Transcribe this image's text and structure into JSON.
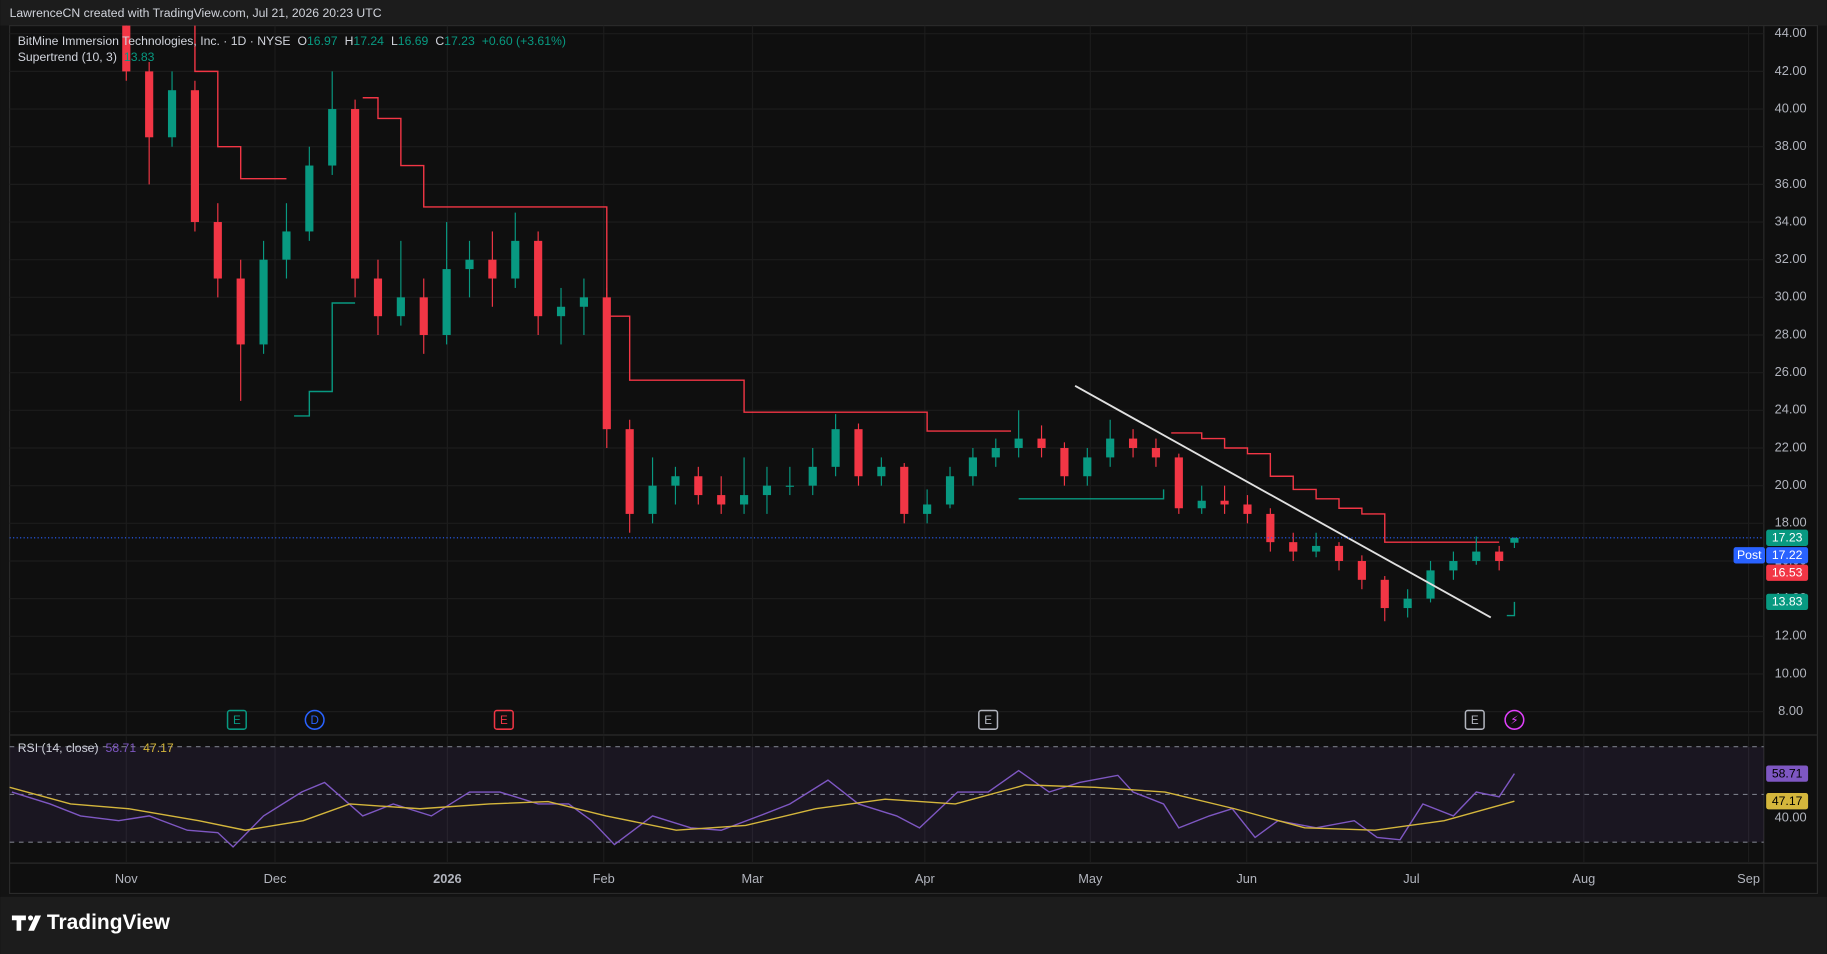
{
  "header": {
    "credit": "LawrenceCN created with TradingView.com, Jul 21, 2026 20:23 UTC"
  },
  "chart_data": [
    {
      "type": "candlestick",
      "title": "BitMine Immersion Technologies, Inc. · 1D · NYSE",
      "ohlc_letters": [
        "O",
        "H",
        "L",
        "C"
      ],
      "change": "+0.60 (+3.61%)",
      "up_color": "#089981",
      "down_color": "#f23645",
      "x": [
        0,
        3,
        6,
        9,
        12,
        15,
        18,
        21,
        24,
        27,
        30,
        33,
        36,
        39,
        42,
        45,
        48,
        51,
        54,
        57,
        60,
        63,
        66,
        69,
        72,
        75,
        78,
        81,
        84,
        87,
        90,
        93,
        96,
        99,
        102,
        105,
        108,
        111,
        114,
        117,
        120,
        123,
        126,
        129,
        132,
        135,
        138,
        141,
        144,
        147,
        150,
        153,
        156,
        159,
        162,
        165,
        168,
        171,
        174,
        177,
        180,
        182
      ],
      "open": [
        44.5,
        42,
        38.5,
        41,
        34,
        31,
        27.5,
        32,
        33.5,
        37,
        40,
        31,
        29,
        30,
        28,
        31.5,
        32,
        31,
        33,
        29,
        29.5,
        30,
        23,
        18.5,
        20,
        20.5,
        19.5,
        19,
        19.5,
        20,
        20,
        21,
        23,
        20.5,
        21,
        18.5,
        19,
        20.5,
        21.5,
        22,
        22.5,
        22,
        20.5,
        21.5,
        22.5,
        22,
        21.5,
        18.8,
        19.2,
        19,
        18.5,
        17,
        16.5,
        16.8,
        16,
        15,
        13.5,
        14,
        15.5,
        16,
        16.5,
        16.97
      ],
      "high": [
        45,
        42.5,
        42,
        41.5,
        35,
        32,
        33,
        35,
        38,
        42,
        40.5,
        32,
        33,
        31,
        34,
        33,
        33.5,
        34.5,
        33.5,
        30.5,
        31,
        30.5,
        23.5,
        21.5,
        21,
        21,
        20.5,
        21.5,
        21,
        21,
        22,
        23.8,
        23.3,
        21.5,
        21.2,
        19.8,
        21,
        22,
        22.5,
        24,
        23.2,
        22.3,
        22,
        23.5,
        23,
        22.5,
        21.7,
        20,
        20,
        19.5,
        18.8,
        17.5,
        17.5,
        17,
        16.3,
        15.2,
        14.5,
        16,
        16.5,
        17.3,
        16.8,
        17.24
      ],
      "low": [
        41.5,
        36,
        38,
        33.5,
        30,
        24.5,
        27,
        31,
        33,
        36.5,
        30,
        28,
        28.5,
        27,
        27.5,
        30,
        29.5,
        30.5,
        28,
        27.5,
        28,
        22,
        17.5,
        18,
        19,
        19,
        18.5,
        18.5,
        18.5,
        19.5,
        19.5,
        20.5,
        20,
        20,
        18,
        18,
        18.8,
        20,
        21,
        21.5,
        21.5,
        20,
        20,
        21,
        21.5,
        21,
        18.5,
        18.5,
        18.5,
        18,
        16.5,
        16,
        16.2,
        15.5,
        14.5,
        12.8,
        13,
        13.8,
        15,
        15.8,
        15.5,
        16.69
      ],
      "close": [
        42,
        38.5,
        41,
        34,
        31,
        27.5,
        32,
        33.5,
        37,
        40,
        31,
        29,
        30,
        28,
        31.5,
        32,
        31,
        33,
        29,
        29.5,
        30,
        23,
        18.5,
        20,
        20.5,
        19.5,
        19,
        19.5,
        20,
        20,
        21,
        23,
        20.5,
        21,
        18.5,
        19,
        20.5,
        21.5,
        22,
        22.5,
        22,
        20.5,
        21.5,
        22.5,
        22,
        21.5,
        18.8,
        19.2,
        19,
        18.5,
        17,
        16.5,
        16.8,
        16,
        15,
        13.5,
        14,
        15.5,
        16,
        16.5,
        16,
        17.23
      ],
      "supertrend": {
        "name": "Supertrend (10, 3)",
        "up_color": "#089981",
        "down_color": "#f23645",
        "x": [
          0,
          3,
          6,
          9,
          12,
          15,
          18,
          21,
          22,
          24,
          27,
          30,
          31,
          33,
          36,
          39,
          45,
          51,
          57,
          60,
          63,
          66,
          72,
          78,
          81,
          90,
          102,
          105,
          114,
          116,
          117,
          126,
          132,
          136,
          137,
          138,
          141,
          144,
          147,
          150,
          153,
          156,
          159,
          162,
          165,
          168,
          174,
          180,
          181,
          182
        ],
        "down": [
          44.5,
          44.5,
          44.5,
          42,
          38,
          36.3,
          36.3,
          36.3,
          null,
          null,
          null,
          null,
          40.6,
          39.5,
          37,
          34.8,
          34.8,
          34.8,
          34.8,
          34.8,
          29,
          25.6,
          25.6,
          25.6,
          23.9,
          23.9,
          23.9,
          22.9,
          22.9,
          22.9,
          null,
          null,
          null,
          null,
          22.8,
          22.8,
          22.5,
          22,
          21.7,
          20.5,
          19.8,
          19.3,
          18.8,
          18.5,
          17,
          17,
          17,
          17,
          null,
          null
        ],
        "up": [
          null,
          null,
          null,
          null,
          null,
          null,
          null,
          null,
          23.7,
          25,
          29.7,
          29.7,
          null,
          null,
          null,
          null,
          null,
          null,
          null,
          null,
          null,
          null,
          null,
          null,
          null,
          null,
          null,
          null,
          null,
          null,
          19.3,
          19.3,
          19.3,
          19.8,
          null,
          null,
          null,
          null,
          null,
          null,
          null,
          null,
          null,
          null,
          null,
          null,
          null,
          null,
          13.1,
          13.83
        ]
      },
      "trendline": {
        "x": [
          124.4,
          178.9
        ],
        "y": [
          25.3,
          13.0
        ],
        "color": "#e0e0e0"
      },
      "price_tags": [
        {
          "tag": "Post",
          "value": 17.22,
          "color": "#2962ff"
        },
        {
          "value": 16.53,
          "color": "#f23645"
        }
      ],
      "events": [
        {
          "x": 14.5,
          "label": "E",
          "color": "#089981",
          "shape": "square"
        },
        {
          "x": 24.7,
          "label": "D",
          "color": "#2962ff",
          "shape": "circle"
        },
        {
          "x": 49.5,
          "label": "E",
          "color": "#f23645",
          "shape": "square"
        },
        {
          "x": 113,
          "label": "E",
          "color": "#b2b5be",
          "shape": "square"
        },
        {
          "x": 176.8,
          "label": "E",
          "color": "#b2b5be",
          "shape": "square"
        },
        {
          "x": 182,
          "label": "⚡",
          "color": "#e040fb",
          "shape": "circle"
        }
      ],
      "xlim": [
        -15.3,
        214.7
      ],
      "xticks": [
        {
          "value": 0,
          "label": "Nov"
        },
        {
          "value": 19.5,
          "label": "Dec"
        },
        {
          "value": 42.1,
          "label": "2026"
        },
        {
          "value": 62.6,
          "label": "Feb"
        },
        {
          "value": 82.1,
          "label": "Mar"
        },
        {
          "value": 104.7,
          "label": "Apr"
        },
        {
          "value": 126.4,
          "label": "May"
        },
        {
          "value": 146.9,
          "label": "Jun"
        },
        {
          "value": 168.5,
          "label": "Jul"
        },
        {
          "value": 191.1,
          "label": "Aug"
        },
        {
          "value": 212.7,
          "label": "Sep"
        }
      ],
      "ylim": [
        6.82,
        44.43
      ],
      "yticks": [
        {
          "value": 8,
          "label": "8.00"
        },
        {
          "value": 10,
          "label": "10.00"
        },
        {
          "value": 12,
          "label": "12.00"
        },
        {
          "value": 14,
          "label": "14.00"
        },
        {
          "value": 16,
          "label": "16.00"
        },
        {
          "value": 18,
          "label": "18.00"
        },
        {
          "value": 20,
          "label": "20.00"
        },
        {
          "value": 22,
          "label": "22.00"
        },
        {
          "value": 24,
          "label": "24.00"
        },
        {
          "value": 26,
          "label": "26.00"
        },
        {
          "value": 28,
          "label": "28.00"
        },
        {
          "value": 30,
          "label": "30.00"
        },
        {
          "value": 32,
          "label": "32.00"
        },
        {
          "value": 34,
          "label": "34.00"
        },
        {
          "value": 36,
          "label": "36.00"
        },
        {
          "value": 38,
          "label": "38.00"
        },
        {
          "value": 40,
          "label": "40.00"
        },
        {
          "value": 42,
          "label": "42.00"
        },
        {
          "value": 44,
          "label": "44.00"
        }
      ],
      "grid": true
    },
    {
      "type": "line",
      "title": "RSI (14, close)",
      "series": [
        {
          "color": "#7e57c2",
          "x": [
            -15,
            -10,
            -6,
            -1,
            3,
            8,
            12,
            14,
            18,
            23,
            26,
            31,
            35,
            40,
            45,
            49,
            54,
            58,
            61,
            64,
            69,
            74,
            78,
            83,
            87,
            92,
            96,
            101,
            104,
            109,
            113,
            117,
            121,
            125,
            130,
            132,
            136,
            138,
            142,
            145,
            148,
            151,
            156,
            161,
            164,
            167,
            170,
            174,
            177,
            180,
            182
          ],
          "values": [
            51,
            46,
            41,
            39,
            41,
            35,
            34,
            28,
            41,
            51,
            55,
            41,
            46,
            41,
            51,
            51,
            46,
            46,
            39,
            29,
            41,
            36,
            35,
            41,
            46,
            56,
            46,
            41,
            36,
            51,
            51,
            60,
            51,
            55,
            58,
            51,
            46,
            36,
            41,
            44,
            32,
            39,
            36,
            39,
            32,
            31,
            46,
            41,
            51,
            49,
            58.71
          ]
        },
        {
          "color": "#d4b63c",
          "x": [
            -15.3,
            -7.3,
            0.3,
            9.5,
            15.6,
            23.2,
            29.3,
            38.5,
            47.6,
            55.3,
            62.9,
            72.1,
            81.2,
            90.4,
            99.5,
            108.7,
            117.9,
            127,
            136.2,
            145.3,
            154.5,
            163.7,
            172.8,
            182
          ],
          "values": [
            53,
            46,
            44,
            39,
            35,
            39,
            46,
            44,
            46,
            47,
            41,
            35,
            37,
            44,
            48,
            46,
            54,
            53,
            51,
            44,
            36,
            35,
            39,
            47.17
          ]
        }
      ],
      "levels": [
        70,
        50,
        30
      ],
      "band_color": "#7e57c2",
      "ylim": [
        21.7,
        74.4
      ],
      "yticks": [
        {
          "value": 40,
          "label": "40.00"
        }
      ]
    }
  ],
  "footer": {
    "brand": "TradingView"
  }
}
